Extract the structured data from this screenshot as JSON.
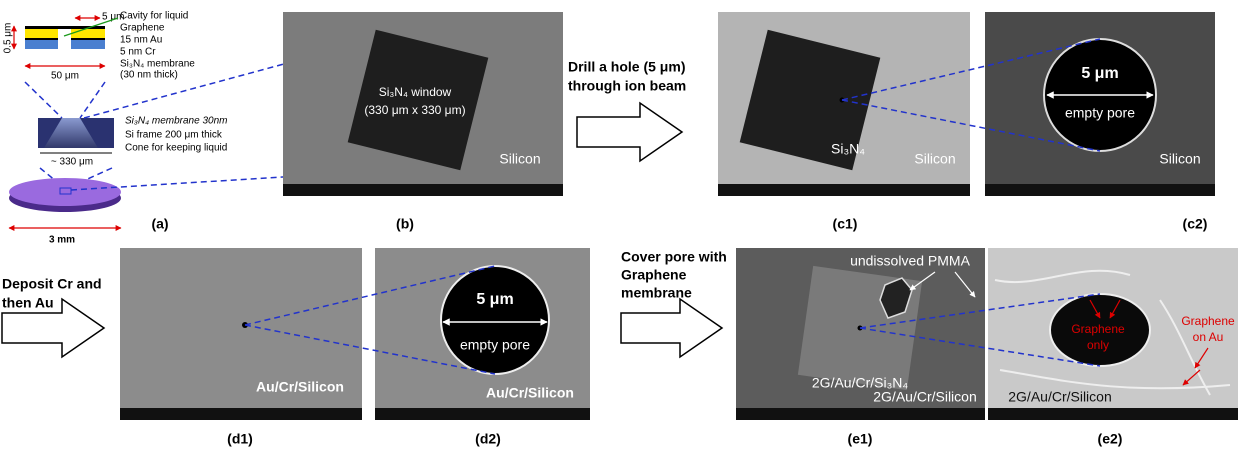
{
  "panel_a": {
    "width_top": "5 μm",
    "height": "0.5 μm",
    "width": "50 μm",
    "layers": [
      "Cavity for liquid",
      "Graphene",
      "15 nm Au",
      "5 nm Cr",
      "Si₃N₄ membrane",
      "(30 nm thick)"
    ],
    "frame_labels": [
      "Si₃N₄ membrane 30nm",
      "Si frame 200 μm thick",
      "Cone for keeping liquid"
    ],
    "frame_width": "~ 330 μm",
    "disc_diameter": "3 mm",
    "caption": "(a)"
  },
  "panel_b": {
    "window": "Si₃N₄ window",
    "window_size": "(330 μm x 330 μm)",
    "material": "Silicon",
    "caption": "(b)"
  },
  "step_drill": [
    "Drill a hole (5 μm)",
    "through ion beam"
  ],
  "panel_c1": {
    "membrane": "Si₃N₄",
    "material": "Silicon",
    "caption": "(c1)"
  },
  "panel_c2": {
    "pore_size": "5 μm",
    "pore": "empty pore",
    "material": "Silicon",
    "caption": "(c2)"
  },
  "step_deposit": [
    "Deposit Cr and",
    "then Au"
  ],
  "panel_d1": {
    "material": "Au/Cr/Silicon",
    "caption": "(d1)"
  },
  "panel_d2": {
    "pore_size": "5 μm",
    "pore": "empty pore",
    "material": "Au/Cr/Silicon",
    "caption": "(d2)"
  },
  "step_cover": [
    "Cover pore with",
    "Graphene",
    "membrane"
  ],
  "panel_e1": {
    "residue": "undissolved PMMA",
    "membrane": "2G/Au/Cr/Si₃N₄",
    "material": "2G/Au/Cr/Silicon",
    "caption": "(e1)"
  },
  "panel_e2": {
    "pore_label": [
      "Graphene",
      "only"
    ],
    "surface_label": [
      "Graphene",
      "on Au"
    ],
    "material": "2G/Au/Cr/Silicon",
    "caption": "(e2)"
  }
}
